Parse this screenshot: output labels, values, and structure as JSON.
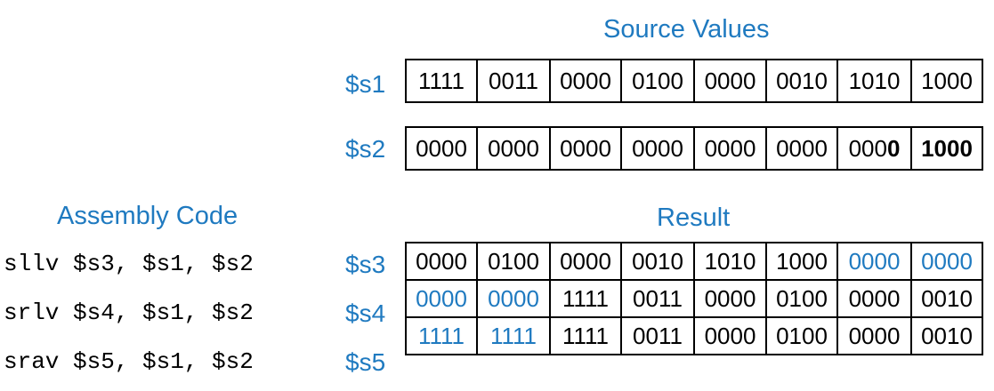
{
  "source_heading": "Source Values",
  "result_heading": "Result",
  "assembly_heading": "Assembly Code",
  "accent_color": "#1f7ac0",
  "source_rows": [
    {
      "reg": "$s1",
      "cells": [
        {
          "t": "1111"
        },
        {
          "t": "0011"
        },
        {
          "t": "0000"
        },
        {
          "t": "0100"
        },
        {
          "t": "0000"
        },
        {
          "t": "0010"
        },
        {
          "t": "1010"
        },
        {
          "t": "1000"
        }
      ]
    },
    {
      "reg": "$s2",
      "cells": [
        {
          "t": "0000"
        },
        {
          "t": "0000"
        },
        {
          "t": "0000"
        },
        {
          "t": "0000"
        },
        {
          "t": "0000"
        },
        {
          "t": "0000"
        },
        {
          "t": "000",
          "bold_tail": "0"
        },
        {
          "t": "1000",
          "bold": true
        }
      ]
    }
  ],
  "result_rows": [
    {
      "reg": "$s3",
      "cells": [
        {
          "t": "0000"
        },
        {
          "t": "0100"
        },
        {
          "t": "0000"
        },
        {
          "t": "0010"
        },
        {
          "t": "1010"
        },
        {
          "t": "1000"
        },
        {
          "t": "0000",
          "hl": true
        },
        {
          "t": "0000",
          "hl": true
        }
      ]
    },
    {
      "reg": "$s4",
      "cells": [
        {
          "t": "0000",
          "hl": true
        },
        {
          "t": "0000",
          "hl": true
        },
        {
          "t": "1111"
        },
        {
          "t": "0011"
        },
        {
          "t": "0000"
        },
        {
          "t": "0100"
        },
        {
          "t": "0000"
        },
        {
          "t": "0010"
        }
      ]
    },
    {
      "reg": "$s5",
      "cells": [
        {
          "t": "1111",
          "hl": true
        },
        {
          "t": "1111",
          "hl": true
        },
        {
          "t": "1111"
        },
        {
          "t": "0011"
        },
        {
          "t": "0000"
        },
        {
          "t": "0100"
        },
        {
          "t": "0000"
        },
        {
          "t": "0010"
        }
      ]
    }
  ],
  "code_lines": [
    "sllv $s3, $s1, $s2",
    "srlv $s4, $s1, $s2",
    "srav $s5, $s1, $s2"
  ]
}
